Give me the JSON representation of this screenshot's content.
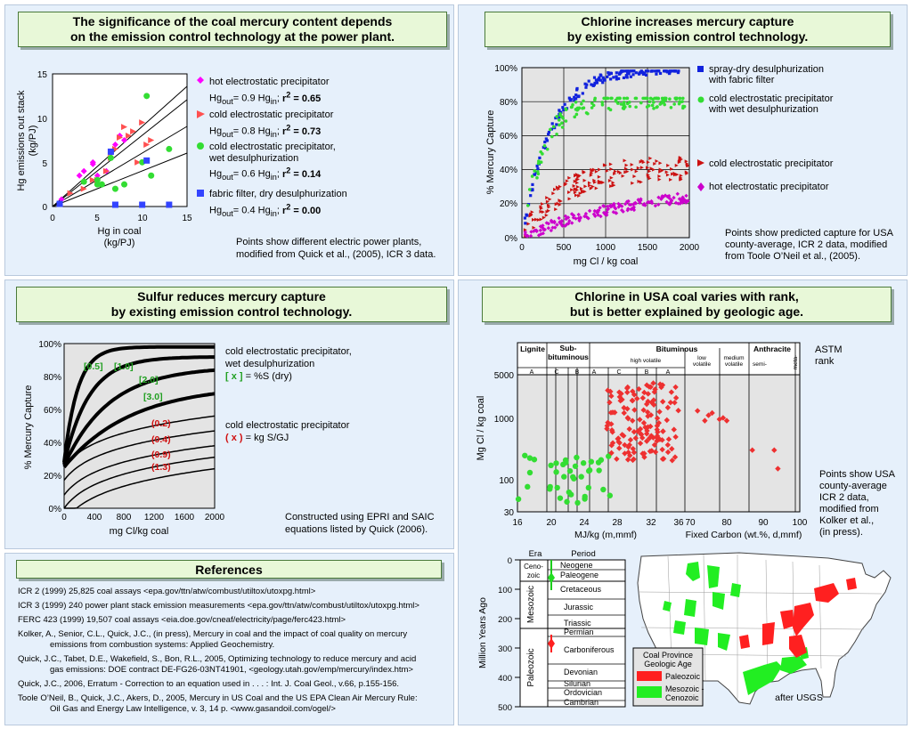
{
  "panel1": {
    "title_l1": "The significance of the coal mercury content depends",
    "title_l2": "on the emission control technology at the power plant.",
    "ylabel1": "Hg emissions out stack",
    "ylabel2": "(kg/PJ)",
    "xlabel1": "Hg in coal",
    "xlabel2": "(kg/PJ)",
    "xticks": [
      "0",
      "5",
      "10",
      "15"
    ],
    "yticks": [
      "0",
      "5",
      "10",
      "15"
    ],
    "legend": [
      {
        "name": "hot electrostatic precipitator",
        "eq": "Hg<sub>out</sub>= 0.9 Hg<sub>in</sub>; <b>r<sup>2</sup> = 0.65</b>",
        "color": "#ff00ff",
        "marker": "diamond"
      },
      {
        "name": "cold electrostatic precipitator",
        "eq": "Hg<sub>out</sub>= 0.8 Hg<sub>in</sub>; <b>r<sup>2</sup> = 0.73</b>",
        "color": "#ff5050",
        "marker": "triangle"
      },
      {
        "name": "cold electrostatic precipitator,<br>wet desulphurization",
        "eq": "Hg<sub>out</sub>= 0.6 Hg<sub>in</sub>; <b>r<sup>2</sup> = 0.14</b>",
        "color": "#33dd33",
        "marker": "circle"
      },
      {
        "name": "fabric filter, dry desulphurization",
        "eq": "Hg<sub>out</sub>= 0.4 Hg<sub>in</sub>; <b>r<sup>2</sup> = 0.00</b>",
        "color": "#3344ff",
        "marker": "square"
      }
    ],
    "note_l1": "Points show different electric power plants,",
    "note_l2": "modified from Quick et al., (2005), ICR 3 data."
  },
  "panel2": {
    "title_l1": "Chlorine increases mercury capture",
    "title_l2": "by existing emission control technology.",
    "ylabel": "% Mercury Capture",
    "xlabel": "mg Cl / kg coal",
    "xticks": [
      "0",
      "500",
      "1000",
      "1500",
      "2000"
    ],
    "yticks": [
      "0%",
      "20%",
      "40%",
      "60%",
      "80%",
      "100%"
    ],
    "legend1": "spray-dry desulphurization",
    "legend1b": "with fabric filter",
    "legend2": "cold electrostatic precipitator",
    "legend2b": "with wet desulphurization",
    "legend3": "cold electrostatic precipitator",
    "legend4": "hot electrostatic precipitator",
    "note_l1": "Points show predicted capture for USA",
    "note_l2": "county-average, ICR 2 data, modified",
    "note_l3": "from Toole O’Neil et al., (2005)."
  },
  "panel3": {
    "title_l1": "Sulfur reduces mercury capture",
    "title_l2": "by existing emission control technology.",
    "ylabel": "% Mercury Capture",
    "xlabel": "mg Cl/kg coal",
    "xticks": [
      "0",
      "400",
      "800",
      "1200",
      "1600",
      "2000"
    ],
    "yticks": [
      "0%",
      "20%",
      "40%",
      "60%",
      "80%",
      "100%"
    ],
    "green_labels": [
      "[0.5]",
      "[1.0]",
      "[2.0]",
      "[3.0]"
    ],
    "red_labels": [
      "(0.2)",
      "(0.4)",
      "(0.9)",
      "(1.3)"
    ],
    "leg1_l1": "cold electrostatic precipitator,",
    "leg1_l2": "wet desulphurization",
    "leg1_l3a": "[ x ]",
    "leg1_l3b": " = %S (dry)",
    "leg2_l1": "cold electrostatic precipitator",
    "leg2_l2a": "( x )",
    "leg2_l2b": " = kg S/GJ",
    "note_l1": "Constructed using EPRI and SAIC",
    "note_l2": "equations listed by Quick (2006)."
  },
  "panel4": {
    "title_l1": "Chlorine in USA coal varies with rank,",
    "title_l2": "but is better explained by geologic age.",
    "rank_headers": [
      "Lignite",
      "Sub-\nbituminous",
      "Bituminous",
      "Anthracite"
    ],
    "sub_headers": [
      "high volatile",
      "low volatile",
      "medium volatile",
      "semi-",
      "meta-"
    ],
    "letters": [
      "A",
      "C",
      "B",
      "A",
      "C",
      "B",
      "A"
    ],
    "ylabel": "Mg Cl / kg coal",
    "yticks": [
      "5000",
      "1000",
      "100",
      "30"
    ],
    "xticks1": [
      "16",
      "20",
      "24",
      "28",
      "32",
      "36"
    ],
    "xticks2": [
      "70",
      "80",
      "90",
      "100"
    ],
    "xlabel1": "MJ/kg (m,mmf)",
    "xlabel2": "Fixed Carbon (wt.%, d,mmf)",
    "astm_l1": "ASTM",
    "astm_l2": "rank",
    "note": [
      "Points show USA",
      "county-average",
      "ICR 2 data,",
      "modified from",
      "Kolker et al.,",
      "(in press)."
    ],
    "era_header": "Era",
    "period_header": "Period",
    "eras": [
      "Ceno-\nzoic",
      "Mesozoic",
      "Paleozoic"
    ],
    "periods": [
      "Neogene",
      "Paleogene",
      "Cretaceous",
      "Jurassic",
      "Triassic",
      "Permian",
      "Carboniferous",
      "Devonian",
      "Silurian",
      "Ordovician",
      "Cambrian"
    ],
    "age_label": "Million Years Ago",
    "age_ticks": [
      "0",
      "100",
      "200",
      "300",
      "400",
      "500"
    ],
    "legend_title1": "Coal Province",
    "legend_title2": "Geologic Age",
    "legend_paleozoic": "Paleozoic",
    "legend_meso1": "Mesozoic -",
    "legend_meso2": "Cenozoic",
    "after": "after USGS"
  },
  "references": {
    "title": "References",
    "items": [
      "ICR 2 (1999) 25,825 coal assays <epa.gov/ttn/atw/combust/utiltox/utoxpg.html>",
      "ICR 3 (1999) 240 power plant stack emission measurements <epa.gov/ttn/atw/combust/utiltox/utoxpg.html>",
      "FERC 423 (1999) 19,507 coal assays <eia.doe.gov/cneaf/electricity/page/ferc423.html>",
      "Kolker, A., Senior, C.L., Quick, J.C., (in press),  Mercury in coal and the impact of coal quality on mercury",
      "emissions from combustion systems: Applied Geochemistry.",
      "Quick, J.C., Tabet, D.E., Wakefield, S., Bon, R.L., 2005, Optimizing technology to reduce mercury and acid",
      "gas emissions: DOE contract DE-FG26-03NT41901, <geology.utah.gov/emp/mercury/index.htm>",
      "Quick, J.C., 2006, Erratum - Correction to an equation used in . . .  : Int. J. Coal Geol., v.66, p.155-156.",
      "Toole O’Neil, B., Quick, J.C., Akers, D., 2005, Mercury in US Coal and the US EPA Clean Air Mercury Rule:",
      "Oil Gas and Energy Law Intelligence, v. 3, 14 p. <www.gasandoil.com/ogel/>"
    ]
  },
  "colors": {
    "panel_bg": "#e6f0fb",
    "title_bg": "#e8f8d8",
    "blue": "#1122dd",
    "green": "#33dd33",
    "red": "#cc1111",
    "magenta": "#cc00cc",
    "paleozoic": "#ff2020",
    "mesozoic": "#22ee22"
  }
}
